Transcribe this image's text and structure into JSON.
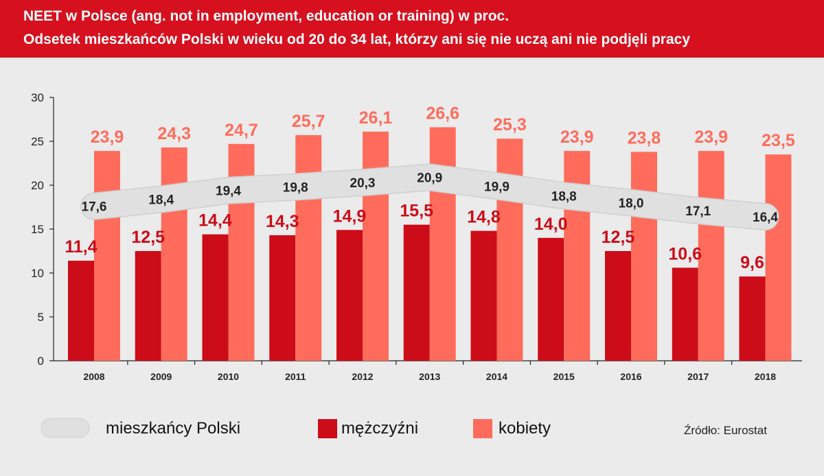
{
  "header": {
    "title_line1": "NEET w Polsce (ang. not in employment, education or training) w proc.",
    "title_line2": "Odsetek mieszkańców Polski w wieku od 20 do 34 lat, którzy ani się nie uczą ani nie podjęli pracy"
  },
  "colors": {
    "header_bg": "#d6101e",
    "men": "#cc0c18",
    "women": "#ff6c5c",
    "total_band": "#e0e0e0",
    "background": "#ebebeb"
  },
  "chart_data": {
    "type": "bar",
    "categories": [
      "2008",
      "2009",
      "2010",
      "2011",
      "2012",
      "2013",
      "2014",
      "2015",
      "2016",
      "2017",
      "2018"
    ],
    "series": [
      {
        "name": "mężczyźni",
        "type": "bar",
        "values": [
          "11,4",
          "12,5",
          "14,4",
          "14,3",
          "14,9",
          "15,5",
          "14,8",
          "14,0",
          "12,5",
          "10,6",
          "9,6"
        ]
      },
      {
        "name": "kobiety",
        "type": "bar",
        "values": [
          "23,9",
          "24,3",
          "24,7",
          "25,7",
          "26,1",
          "26,6",
          "25,3",
          "23,9",
          "23,8",
          "23,9",
          "23,5"
        ]
      },
      {
        "name": "mieszkańcy Polski",
        "type": "line",
        "values": [
          "17,6",
          "18,4",
          "19,4",
          "19,8",
          "20,3",
          "20,9",
          "19,9",
          "18,8",
          "18,0",
          "17,1",
          "16,4"
        ]
      }
    ],
    "yticks": [
      "0",
      "5",
      "10",
      "15",
      "20",
      "25",
      "30"
    ],
    "ylim": [
      0,
      30
    ],
    "grid": false,
    "legend_position": "bottom"
  },
  "legend": {
    "total_label": "mieszkańcy Polski",
    "men_label": "mężczyźni",
    "women_label": "kobiety"
  },
  "source": "Źródło: Eurostat"
}
